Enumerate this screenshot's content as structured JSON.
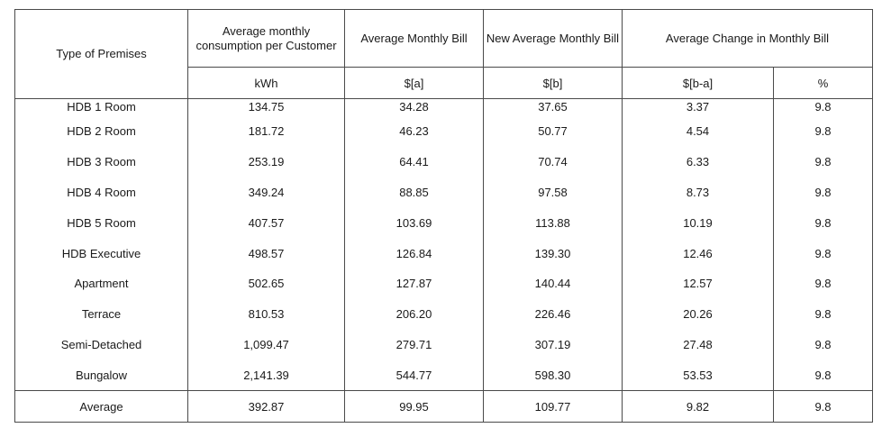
{
  "headers": {
    "premises": "Type of Premises",
    "consumption": "Average monthly consumption per Customer",
    "avg_bill": "Average Monthly Bill",
    "new_avg_bill": "New Average Monthly Bill",
    "change": "Average Change in Monthly Bill"
  },
  "units": {
    "consumption": "kWh",
    "avg_bill": "$[a]",
    "new_avg_bill": "$[b]",
    "change_abs": "$[b-a]",
    "change_pct": "%"
  },
  "rows": [
    {
      "premises": "HDB 1 Room",
      "kwh": "134.75",
      "a": "34.28",
      "b": "37.65",
      "diff": "3.37",
      "pct": "9.8"
    },
    {
      "premises": "HDB 2 Room",
      "kwh": "181.72",
      "a": "46.23",
      "b": "50.77",
      "diff": "4.54",
      "pct": "9.8"
    },
    {
      "premises": "HDB 3 Room",
      "kwh": "253.19",
      "a": "64.41",
      "b": "70.74",
      "diff": "6.33",
      "pct": "9.8"
    },
    {
      "premises": "HDB 4 Room",
      "kwh": "349.24",
      "a": "88.85",
      "b": "97.58",
      "diff": "8.73",
      "pct": "9.8"
    },
    {
      "premises": "HDB 5 Room",
      "kwh": "407.57",
      "a": "103.69",
      "b": "113.88",
      "diff": "10.19",
      "pct": "9.8"
    },
    {
      "premises": "HDB Executive",
      "kwh": "498.57",
      "a": "126.84",
      "b": "139.30",
      "diff": "12.46",
      "pct": "9.8"
    },
    {
      "premises": "Apartment",
      "kwh": "502.65",
      "a": "127.87",
      "b": "140.44",
      "diff": "12.57",
      "pct": "9.8"
    },
    {
      "premises": "Terrace",
      "kwh": "810.53",
      "a": "206.20",
      "b": "226.46",
      "diff": "20.26",
      "pct": "9.8"
    },
    {
      "premises": "Semi-Detached",
      "kwh": "1,099.47",
      "a": "279.71",
      "b": "307.19",
      "diff": "27.48",
      "pct": "9.8"
    },
    {
      "premises": "Bungalow",
      "kwh": "2,141.39",
      "a": "544.77",
      "b": "598.30",
      "diff": "53.53",
      "pct": "9.8"
    }
  ],
  "average": {
    "premises": "Average",
    "kwh": "392.87",
    "a": "99.95",
    "b": "109.77",
    "diff": "9.82",
    "pct": "9.8"
  }
}
